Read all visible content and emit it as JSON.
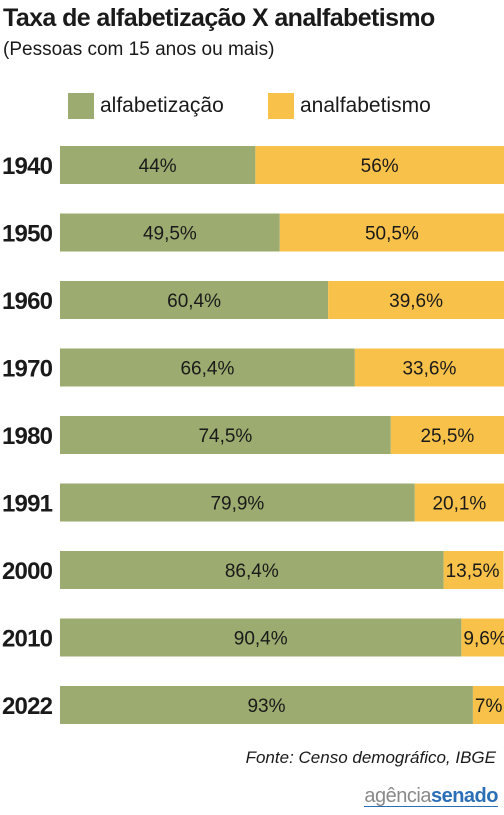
{
  "title": "Taxa de alfabetização X analfabetismo",
  "subtitle": "(Pessoas com 15 anos ou mais)",
  "source": "Fonte:  Censo demográfico, IBGE",
  "logo": {
    "part1": "agência",
    "part2": "senado"
  },
  "colors": {
    "alfabetizacao": "#9cab6f",
    "analfabetismo": "#f8c14a"
  },
  "chart_data": {
    "type": "bar",
    "orientation": "horizontal",
    "stacked": true,
    "categories": [
      "1940",
      "1950",
      "1960",
      "1970",
      "1980",
      "1991",
      "2000",
      "2010",
      "2022"
    ],
    "series": [
      {
        "name": "alfabetização",
        "values": [
          44,
          49.5,
          60.4,
          66.4,
          74.5,
          79.9,
          86.4,
          90.4,
          93
        ],
        "labels": [
          "44%",
          "49,5%",
          "60,4%",
          "66,4%",
          "74,5%",
          "79,9%",
          "86,4%",
          "90,4%",
          "93%"
        ]
      },
      {
        "name": "analfabetismo",
        "values": [
          56,
          50.5,
          39.6,
          33.6,
          25.5,
          20.1,
          13.5,
          9.6,
          7
        ],
        "labels": [
          "56%",
          "50,5%",
          "39,6%",
          "33,6%",
          "25,5%",
          "20,1%",
          "13,5%",
          "9,6%",
          "7%"
        ]
      }
    ],
    "xlim": [
      0,
      100
    ],
    "legend": "top",
    "grid": false
  }
}
